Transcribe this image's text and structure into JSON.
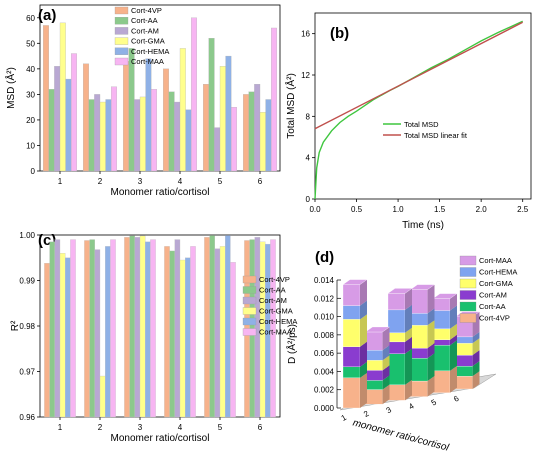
{
  "panels": {
    "a": "(a)",
    "b": "(b)",
    "c": "(c)",
    "d": "(d)"
  },
  "chart_data": [
    {
      "id": "a",
      "type": "bar",
      "ylabel": "MSD (Å²)",
      "xlabel": "Monomer ratio/cortisol",
      "ylim": [
        0,
        65
      ],
      "yticks": [
        0,
        10,
        20,
        30,
        40,
        50,
        60
      ],
      "categories": [
        "1",
        "2",
        "3",
        "4",
        "5",
        "6"
      ],
      "legend_position": "top-center",
      "series": [
        {
          "name": "Cort-4VP",
          "color": "#f7b28b",
          "values": [
            57,
            42,
            43,
            40,
            34,
            30
          ]
        },
        {
          "name": "Cort-AA",
          "color": "#8cc98c",
          "values": [
            32,
            28,
            48,
            31,
            52,
            31
          ]
        },
        {
          "name": "Cort-AM",
          "color": "#b9a8d3",
          "values": [
            41,
            30,
            28,
            27,
            17,
            34
          ]
        },
        {
          "name": "Cort-GMA",
          "color": "#ffff8c",
          "values": [
            58,
            27,
            29,
            48,
            41,
            23
          ]
        },
        {
          "name": "Cort-HEMA",
          "color": "#8fb1e6",
          "values": [
            36,
            28,
            44,
            24,
            45,
            28
          ]
        },
        {
          "name": "Cort-MAA",
          "color": "#f7b5f2",
          "values": [
            46,
            33,
            32,
            60,
            25,
            56
          ]
        }
      ]
    },
    {
      "id": "b",
      "type": "line",
      "xlabel": "Time (ns)",
      "ylabel": "Total MSD (Å²)",
      "xlim": [
        0,
        2.6
      ],
      "ylim": [
        0,
        18
      ],
      "xticks": [
        0.0,
        0.5,
        1.0,
        1.5,
        2.0,
        2.5
      ],
      "yticks": [
        0,
        4,
        8,
        12,
        16
      ],
      "legend_position": "lower-right",
      "series": [
        {
          "name": "Total MSD",
          "color": "#3fc63f",
          "x": [
            0,
            0.02,
            0.05,
            0.1,
            0.2,
            0.3,
            0.4,
            0.5,
            0.7,
            0.9,
            1.0,
            1.2,
            1.4,
            1.6,
            1.8,
            2.0,
            2.2,
            2.5
          ],
          "y": [
            0,
            3.0,
            4.5,
            5.5,
            6.6,
            7.4,
            8.0,
            8.5,
            9.6,
            10.5,
            10.9,
            11.8,
            12.7,
            13.5,
            14.4,
            15.3,
            16.1,
            17.2
          ]
        },
        {
          "name": "Total MSD linear fit",
          "color": "#c0504d",
          "x": [
            0,
            2.5
          ],
          "y": [
            6.8,
            17.1
          ]
        }
      ]
    },
    {
      "id": "c",
      "type": "bar",
      "ylabel": "R²",
      "xlabel": "Monomer ratio/cortisol",
      "ylim": [
        0.96,
        1.0
      ],
      "yticks": [
        0.96,
        0.97,
        0.98,
        0.99,
        1.0
      ],
      "ytick_labels": [
        "0.96",
        "0.97",
        "0.98",
        "0.99",
        "1.00"
      ],
      "categories": [
        "1",
        "2",
        "3",
        "4",
        "5",
        "6"
      ],
      "legend_position": "right",
      "series": [
        {
          "name": "Cort-4VP",
          "color": "#f7b28b",
          "values": [
            0.9938,
            0.9988,
            0.9995,
            0.9975,
            0.9995,
            0.9988
          ]
        },
        {
          "name": "Cort-AA",
          "color": "#8cc98c",
          "values": [
            0.9985,
            0.999,
            0.9998,
            0.9965,
            0.9999,
            0.999
          ]
        },
        {
          "name": "Cort-AM",
          "color": "#b9a8d3",
          "values": [
            0.999,
            0.9968,
            0.9995,
            0.999,
            0.997,
            0.9995
          ]
        },
        {
          "name": "Cort-GMA",
          "color": "#ffff8c",
          "values": [
            0.996,
            0.969,
            0.9998,
            0.9945,
            0.9975,
            0.9985
          ]
        },
        {
          "name": "Cort-HEMA",
          "color": "#8fb1e6",
          "values": [
            0.995,
            0.9975,
            0.9985,
            0.995,
            0.9999,
            0.998
          ]
        },
        {
          "name": "Cort-MAA",
          "color": "#f7b5f2",
          "values": [
            0.999,
            0.999,
            0.999,
            0.9975,
            0.994,
            0.999
          ]
        }
      ]
    },
    {
      "id": "d",
      "type": "bar",
      "stacked": true,
      "view": "3d",
      "ylabel": "D (Å²/ps)",
      "xlabel": "monomer ratio/cortisol",
      "ylim": [
        0,
        0.014
      ],
      "yticks": [
        0,
        0.002,
        0.004,
        0.006,
        0.008,
        0.01,
        0.012,
        0.014
      ],
      "ytick_labels": [
        "0.000",
        "0.002",
        "0.004",
        "0.006",
        "0.008",
        "0.010",
        "0.012",
        "0.014"
      ],
      "categories": [
        "1",
        "2",
        "3",
        "4",
        "5",
        "6"
      ],
      "legend_position": "top-right",
      "series": [
        {
          "name": "Cort-4VP",
          "color": "#f7b28b",
          "values": [
            0.0033,
            0.0016,
            0.0017,
            0.0017,
            0.0024,
            0.0014
          ]
        },
        {
          "name": "Cort-AA",
          "color": "#19c06e",
          "values": [
            0.0012,
            0.001,
            0.0034,
            0.0025,
            0.0028,
            0.0011
          ]
        },
        {
          "name": "Cort-AM",
          "color": "#8a3ccf",
          "values": [
            0.0022,
            0.0011,
            0.0013,
            0.0011,
            0.0006,
            0.0012
          ]
        },
        {
          "name": "Cort-GMA",
          "color": "#ffff6b",
          "values": [
            0.003,
            0.0011,
            0.001,
            0.0025,
            0.0012,
            0.0013
          ]
        },
        {
          "name": "Cort-HEMA",
          "color": "#7fa3f0",
          "values": [
            0.0015,
            0.0011,
            0.0025,
            0.0013,
            0.002,
            0.0007
          ]
        },
        {
          "name": "Cort-MAA",
          "color": "#d79be6",
          "values": [
            0.0023,
            0.002,
            0.0018,
            0.0026,
            0.0013,
            0.0022
          ]
        }
      ]
    }
  ]
}
